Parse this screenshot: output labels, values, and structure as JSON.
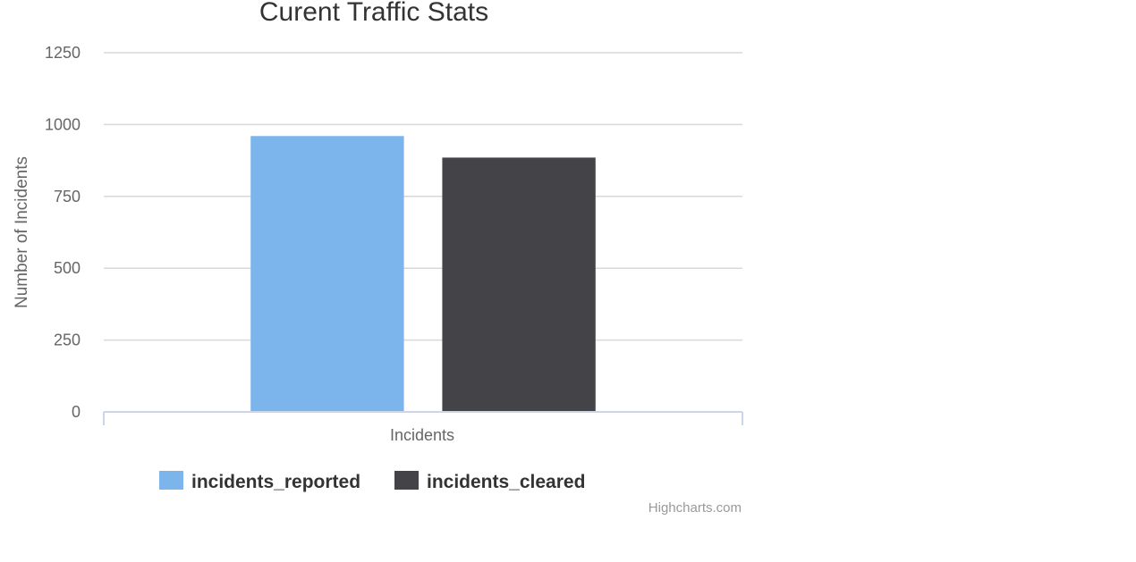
{
  "chart_data": {
    "type": "bar",
    "title": "Curent Traffic Stats",
    "categories": [
      "Incidents"
    ],
    "xlabel": "",
    "ylabel": "Number of Incidents",
    "ylim": [
      0,
      1250
    ],
    "yticks": [
      "0",
      "250",
      "500",
      "750",
      "1000",
      "1250"
    ],
    "grid": true,
    "legend_position": "bottom",
    "series": [
      {
        "name": "incidents_reported",
        "values": [
          960
        ],
        "color": "#7cb5ec"
      },
      {
        "name": "incidents_cleared",
        "values": [
          885
        ],
        "color": "#434348"
      }
    ]
  },
  "credits": "Highcharts.com"
}
